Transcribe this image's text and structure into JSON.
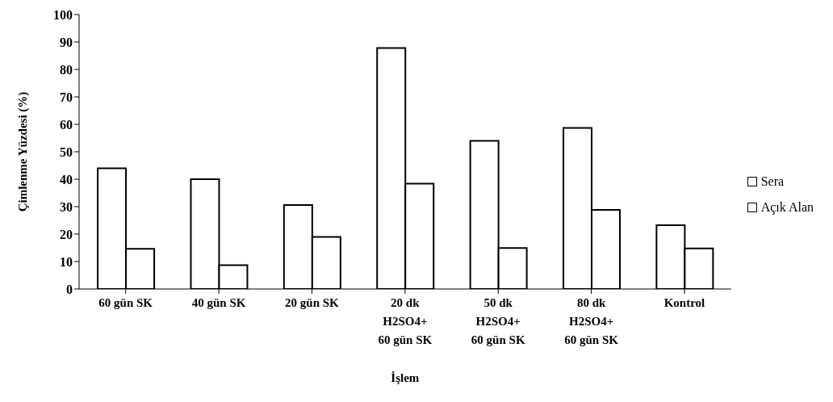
{
  "chart_data": {
    "type": "bar",
    "xlabel": "İşlem",
    "ylabel": "Çimlenme Yüzdesi (%)",
    "categories": [
      "60 gün SK",
      "40 gün SK",
      "20 gün SK",
      "20 dk\nH2SO4+\n60 gün SK",
      "50 dk\nH2SO4+\n60 gün SK",
      "80 dk\nH2SO4+\n60 gün SK",
      "Kontrol"
    ],
    "series": [
      {
        "name": "Sera",
        "color": "#ffffff",
        "values": [
          44,
          40,
          30.6,
          87.8,
          54,
          58.7,
          23.2
        ]
      },
      {
        "name": "Açık Alan",
        "color": "#ffffff",
        "values": [
          14.6,
          8.7,
          19,
          38.4,
          14.9,
          28.8,
          14.8
        ]
      }
    ],
    "ylim": [
      0,
      100
    ],
    "yticks": [
      0,
      10,
      20,
      30,
      40,
      50,
      60,
      70,
      80,
      90,
      100
    ],
    "grid": false,
    "legend": "right"
  }
}
